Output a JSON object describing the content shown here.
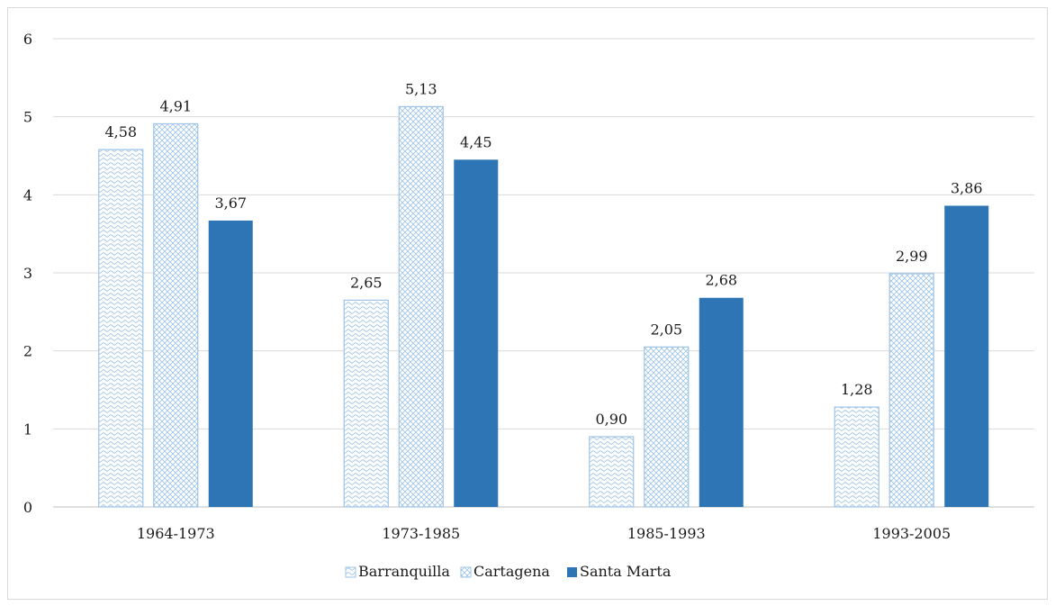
{
  "chart_data": {
    "type": "bar",
    "categories": [
      "1964-1973",
      "1973-1985",
      "1985-1993",
      "1993-2005"
    ],
    "series": [
      {
        "name": "Barranquilla",
        "values": [
          4.58,
          2.65,
          0.9,
          1.28
        ],
        "labels": [
          "4,58",
          "2,65",
          "0,90",
          "1,28"
        ],
        "pattern": "wave",
        "color": "#9dc3e6"
      },
      {
        "name": "Cartagena",
        "values": [
          4.91,
          5.13,
          2.05,
          2.99
        ],
        "labels": [
          "4,91",
          "5,13",
          "2,05",
          "2,99"
        ],
        "pattern": "diamond",
        "color": "#9dc3e6"
      },
      {
        "name": "Santa Marta",
        "values": [
          3.67,
          4.45,
          2.68,
          3.86
        ],
        "labels": [
          "3,67",
          "4,45",
          "2,68",
          "3,86"
        ],
        "pattern": "solid",
        "color": "#2e75b6"
      }
    ],
    "yticks": [
      "0",
      "1",
      "2",
      "3",
      "4",
      "5",
      "6"
    ],
    "ylim": [
      0,
      6
    ],
    "grid": true,
    "legend_position": "bottom"
  }
}
